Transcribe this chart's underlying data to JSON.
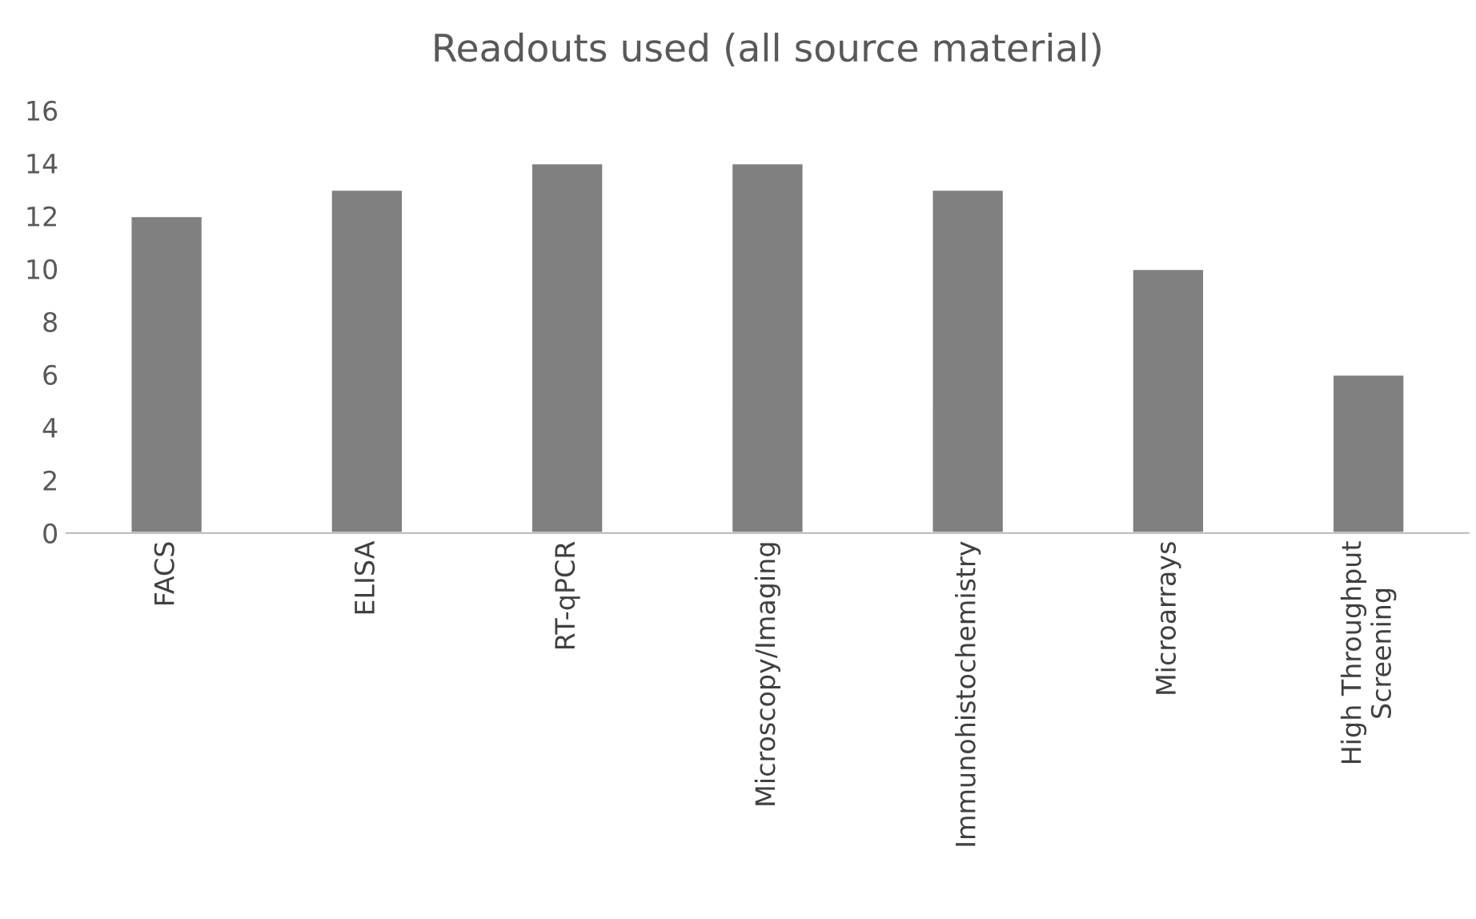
{
  "chart_data": {
    "type": "bar",
    "title": "Readouts used (all source material)",
    "categories": [
      "FACS",
      "ELISA",
      "RT-qPCR",
      "Microscopy/Imaging",
      "Immunohistochemistry",
      "Microarrays",
      "High Throughput\nScreening"
    ],
    "values": [
      12,
      13,
      14,
      14,
      13,
      10,
      6
    ],
    "color": "#808080",
    "ylim": [
      0,
      16
    ],
    "yticks": [
      0,
      2,
      4,
      6,
      8,
      10,
      12,
      14,
      16
    ],
    "grid": false
  }
}
